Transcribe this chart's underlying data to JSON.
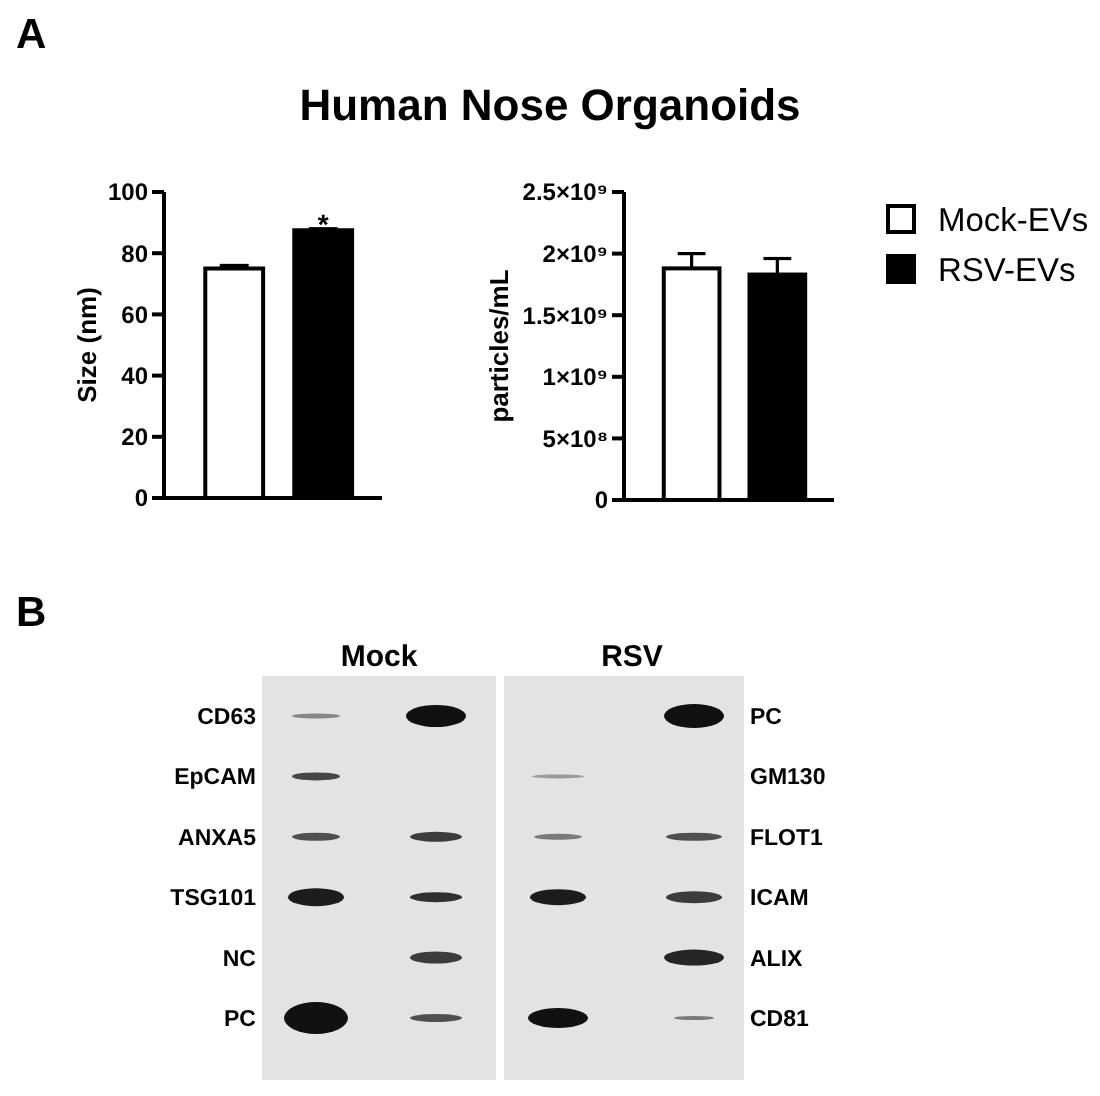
{
  "chart_data": [
    {
      "type": "bar",
      "title": "Human Nose Organoids",
      "ylabel": "Size (nm)",
      "categories": [
        null
      ],
      "series": [
        {
          "color": "#ffffff",
          "values": [
            75
          ],
          "errors": [
            1
          ]
        },
        {
          "color": "#000000",
          "values": [
            87.5
          ],
          "errors": [
            0.5
          ]
        }
      ],
      "ylim": [
        0,
        100
      ],
      "yticks": [
        0,
        20,
        40,
        60,
        80,
        100
      ],
      "annotations": [
        "A",
        {
          "text": "*",
          "y": 91
        }
      ]
    },
    {
      "type": "bar",
      "ylabel": "particles/mL",
      "categories": [
        null
      ],
      "series": [
        {
          "name": "Mock-EVs",
          "color": "#ffffff",
          "values": [
            1880000000
          ],
          "errors": [
            120000000
          ]
        },
        {
          "name": "RSV-EVs",
          "color": "#000000",
          "values": [
            1830000000
          ],
          "errors": [
            130000000
          ]
        }
      ],
      "ylim": [
        0,
        2500000000
      ],
      "yticks": [
        0,
        {
          "value": 500000000,
          "label": "5×10⁸"
        },
        {
          "value": 1000000000,
          "label": "1×10⁹"
        },
        {
          "value": 1500000000,
          "label": "1.5×10⁹"
        },
        {
          "value": 2000000000,
          "label": "2×10⁹"
        },
        {
          "value": 2500000000,
          "label": "2.5×10⁹"
        }
      ],
      "legend": "right"
    },
    {
      "type": "other",
      "categories": [
        "Mock",
        "RSV"
      ],
      "y_categories": [
        "CD63",
        "EpCAM",
        "ANXA5",
        "TSG101",
        "NC",
        "PC"
      ],
      "y2_categories": [
        "PC",
        "GM130",
        "FLOT1",
        "ICAM",
        "ALIX",
        "CD81"
      ],
      "annotations": [
        "B"
      ]
    }
  ]
}
